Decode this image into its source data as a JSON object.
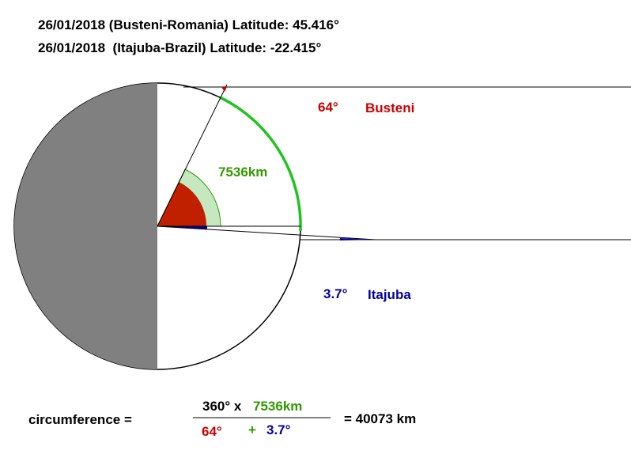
{
  "header": {
    "line1": "26/01/2018 (Busteni-Romania) Latitude: 45.416°",
    "line2": "26/01/2018  (Itajuba-Brazil) Latitude: -22.415°"
  },
  "diagram": {
    "busteni_angle": "64°",
    "busteni_label": "Busteni",
    "arc_distance": "7536km",
    "itajuba_angle": "3.7°",
    "itajuba_label": "Itajuba"
  },
  "formula": {
    "lhs": "circumference =",
    "numerator_prefix": "360° x",
    "numerator_distance": "7536km",
    "denominator_a": "64°",
    "plus": "+",
    "denominator_b": "3.7°",
    "result": "= 40073 km"
  }
}
